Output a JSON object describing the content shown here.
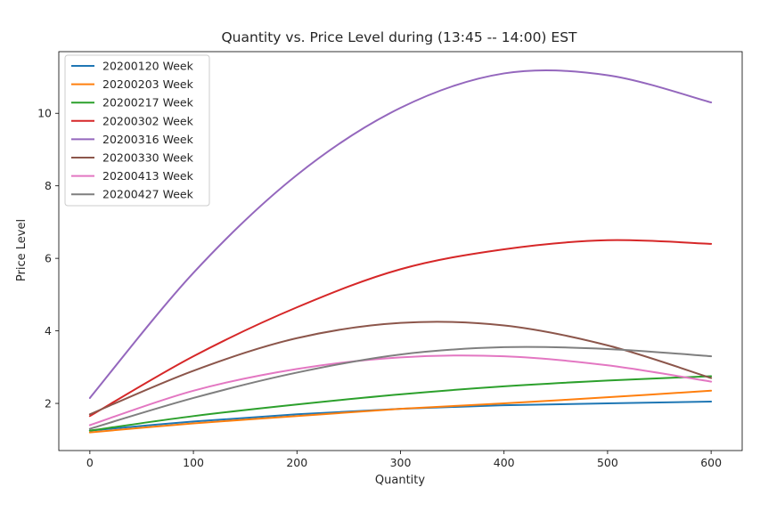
{
  "chart_data": {
    "type": "line",
    "title": "Quantity vs. Price Level during  (13:45 -- 14:00) EST",
    "xlabel": "Quantity",
    "ylabel": "Price Level",
    "xlim": [
      -30,
      630
    ],
    "ylim": [
      0.7,
      11.7
    ],
    "xticks": [
      0,
      100,
      200,
      300,
      400,
      500,
      600
    ],
    "yticks": [
      2,
      4,
      6,
      8,
      10
    ],
    "grid": false,
    "legend_position": "top-left",
    "x": [
      0,
      100,
      200,
      300,
      400,
      500,
      600
    ],
    "series": [
      {
        "name": "20200120 Week",
        "color": "#1f77b4",
        "values": [
          1.25,
          1.5,
          1.7,
          1.85,
          1.95,
          2.0,
          2.05
        ]
      },
      {
        "name": "20200203 Week",
        "color": "#ff7f0e",
        "values": [
          1.2,
          1.45,
          1.65,
          1.85,
          2.0,
          2.17,
          2.35
        ]
      },
      {
        "name": "20200217 Week",
        "color": "#2ca02c",
        "values": [
          1.25,
          1.65,
          1.97,
          2.25,
          2.47,
          2.63,
          2.75
        ]
      },
      {
        "name": "20200302 Week",
        "color": "#d62728",
        "values": [
          1.65,
          3.3,
          4.65,
          5.7,
          6.25,
          6.5,
          6.4
        ]
      },
      {
        "name": "20200316 Week",
        "color": "#9467bd",
        "values": [
          2.15,
          5.6,
          8.3,
          10.15,
          11.1,
          11.05,
          10.3
        ]
      },
      {
        "name": "20200330 Week",
        "color": "#8c564b",
        "values": [
          1.7,
          2.9,
          3.8,
          4.22,
          4.15,
          3.6,
          2.7
        ]
      },
      {
        "name": "20200413 Week",
        "color": "#e377c2",
        "values": [
          1.4,
          2.35,
          2.95,
          3.27,
          3.3,
          3.05,
          2.6
        ]
      },
      {
        "name": "20200427 Week",
        "color": "#7f7f7f",
        "values": [
          1.3,
          2.15,
          2.85,
          3.35,
          3.55,
          3.5,
          3.3
        ]
      }
    ]
  }
}
